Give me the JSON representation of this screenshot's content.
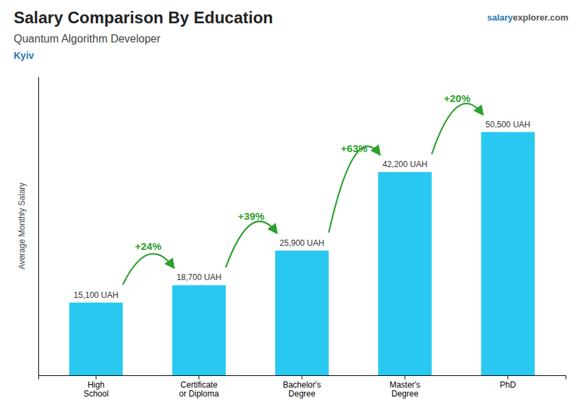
{
  "chart_data": {
    "type": "bar",
    "title": "Salary Comparison By Education",
    "subtitle": "Quantum Algorithm Developer",
    "annotations": [
      "Kyiv",
      "salary",
      "explorer.com"
    ],
    "ylabel": "Average Monthly Salary",
    "categories": [
      "High\nSchool",
      "Certificate\nor Diploma",
      "Bachelor's\nDegree",
      "Master's\nDegree",
      "PhD"
    ],
    "values": [
      15100,
      18700,
      25900,
      42200,
      50500
    ],
    "value_labels": [
      "15,100 UAH",
      "18,700 UAH",
      "25,900 UAH",
      "42,200 UAH",
      "50,500 UAH"
    ],
    "change_labels": [
      "+24%",
      "+39%",
      "+63%",
      "+20%"
    ],
    "data_labels": true,
    "tick_labels": "x",
    "color": "#29c8f0",
    "ylim": [
      0,
      62000
    ]
  }
}
